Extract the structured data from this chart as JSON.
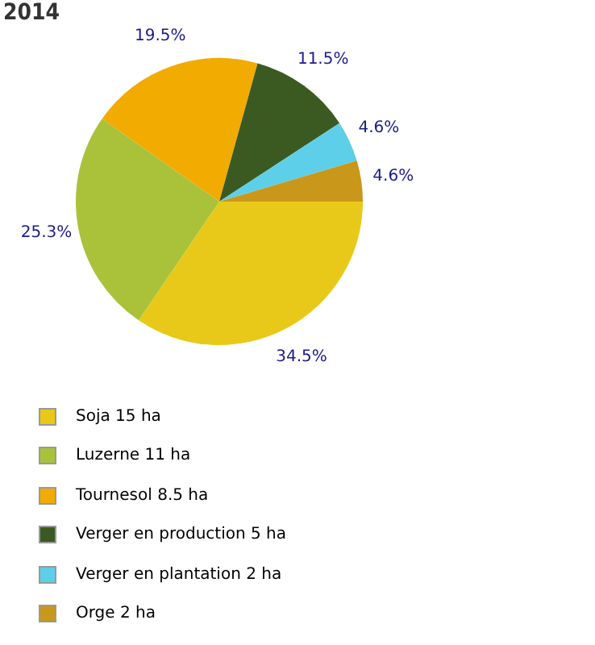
{
  "chart_data": {
    "type": "pie",
    "title": "2014",
    "categories": [
      "Soja 15 ha",
      "Luzerne 11 ha",
      "Tournesol 8.5 ha",
      "Verger en production 5 ha",
      "Verger en plantation 2 ha",
      "Orge 2 ha"
    ],
    "values": [
      34.5,
      25.3,
      19.5,
      11.5,
      4.6,
      4.6
    ],
    "value_labels": [
      "34.5%",
      "25.3%",
      "19.5%",
      "11.5%",
      "4.6%",
      "4.6%"
    ],
    "colors": [
      "#e8c91a",
      "#a9c23a",
      "#f2ab00",
      "#3b5a22",
      "#5ecfe8",
      "#c9971a"
    ],
    "legend": "bottom"
  }
}
